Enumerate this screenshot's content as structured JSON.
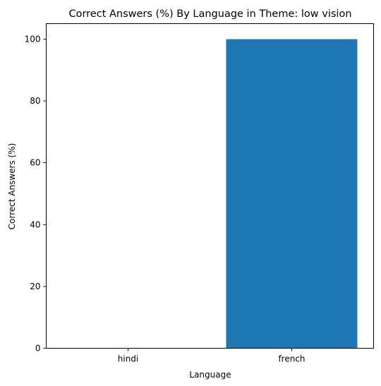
{
  "chart_data": {
    "type": "bar",
    "title": "Correct Answers (%) By Language in Theme: low vision",
    "xlabel": "Language",
    "ylabel": "Correct Answers (%)",
    "categories": [
      "hindi",
      "french"
    ],
    "values": [
      0,
      100
    ],
    "ylim": [
      0,
      105
    ],
    "yticks": [
      0,
      20,
      40,
      60,
      80,
      100
    ],
    "bar_color": "#1f77b4",
    "grid": false,
    "legend": "none"
  }
}
